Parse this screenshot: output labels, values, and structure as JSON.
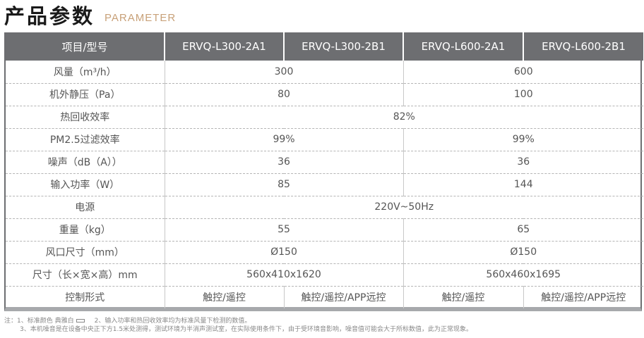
{
  "header": {
    "title_cn": "产品参数",
    "title_en": "PARAMETER"
  },
  "table": {
    "headers": [
      "项目/型号",
      "ERVQ-L300-2A1",
      "ERVQ-L300-2B1",
      "ERVQ-L600-2A1",
      "ERVQ-L600-2B1"
    ],
    "rows": [
      {
        "label": "风量（m³/h）",
        "l300": "300",
        "l600": "600"
      },
      {
        "label": "机外静压（Pa）",
        "l300": "80",
        "l600": "100"
      },
      {
        "label": "热回收效率",
        "all": "82%"
      },
      {
        "label": "PM2.5过滤效率",
        "l300": "99%",
        "l600": "99%"
      },
      {
        "label": "噪声（dB（A））",
        "l300": "36",
        "l600": "36"
      },
      {
        "label": "输入功率（W）",
        "l300": "85",
        "l600": "144"
      },
      {
        "label": "电源",
        "all": "220V~50Hz"
      },
      {
        "label": "重量（kg）",
        "l300": "55",
        "l600": "65"
      },
      {
        "label": "风口尺寸（mm）",
        "l300": "Ø150",
        "l600": "Ø150"
      },
      {
        "label": "尺寸（长×宽×高）mm",
        "l300": "560x410x1620",
        "l600": "560x460x1695"
      },
      {
        "label": "控制形式",
        "c1": "触控/遥控",
        "c2": "触控/遥控/APP远控",
        "c3": "触控/遥控",
        "c4": "触控/遥控/APP远控"
      }
    ]
  },
  "notes": {
    "prefix": "注：1、标准颜色  典雅白",
    "note2": "2、输入功率和热回收效率均为标准风量下检测的数值。",
    "note3": "3、本机噪音是在设备中央正下方1.5米处测得，测试环境为半消声测试室，在实际使用条件下，由于受环境音影响，噪音值可能会大于所标数值，此为正常现象。"
  }
}
